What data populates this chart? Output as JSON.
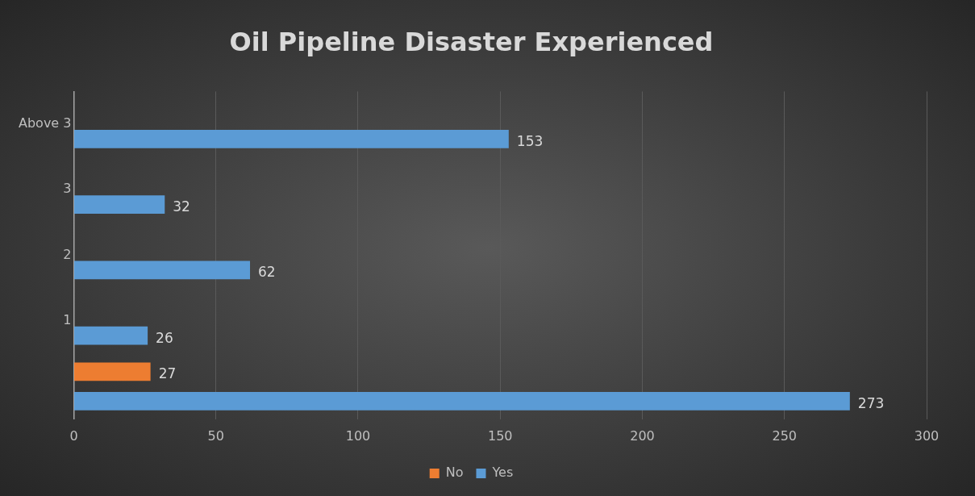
{
  "chart_data": {
    "type": "bar",
    "orientation": "horizontal",
    "title": "Oil Pipeline Disaster Experienced",
    "categories": [
      "Above 3",
      "3",
      "2",
      "1",
      null
    ],
    "series": [
      {
        "name": "No",
        "color": "#ed7d31",
        "values": [
          null,
          null,
          null,
          null,
          27
        ]
      },
      {
        "name": "Yes",
        "color": "#5b9bd5",
        "values": [
          153,
          32,
          62,
          26,
          273
        ]
      }
    ],
    "xlim": [
      0,
      300
    ],
    "xticks": [
      0,
      50,
      100,
      150,
      200,
      250,
      300
    ],
    "grid": "x",
    "legend": "bottom",
    "data_labels": true
  }
}
